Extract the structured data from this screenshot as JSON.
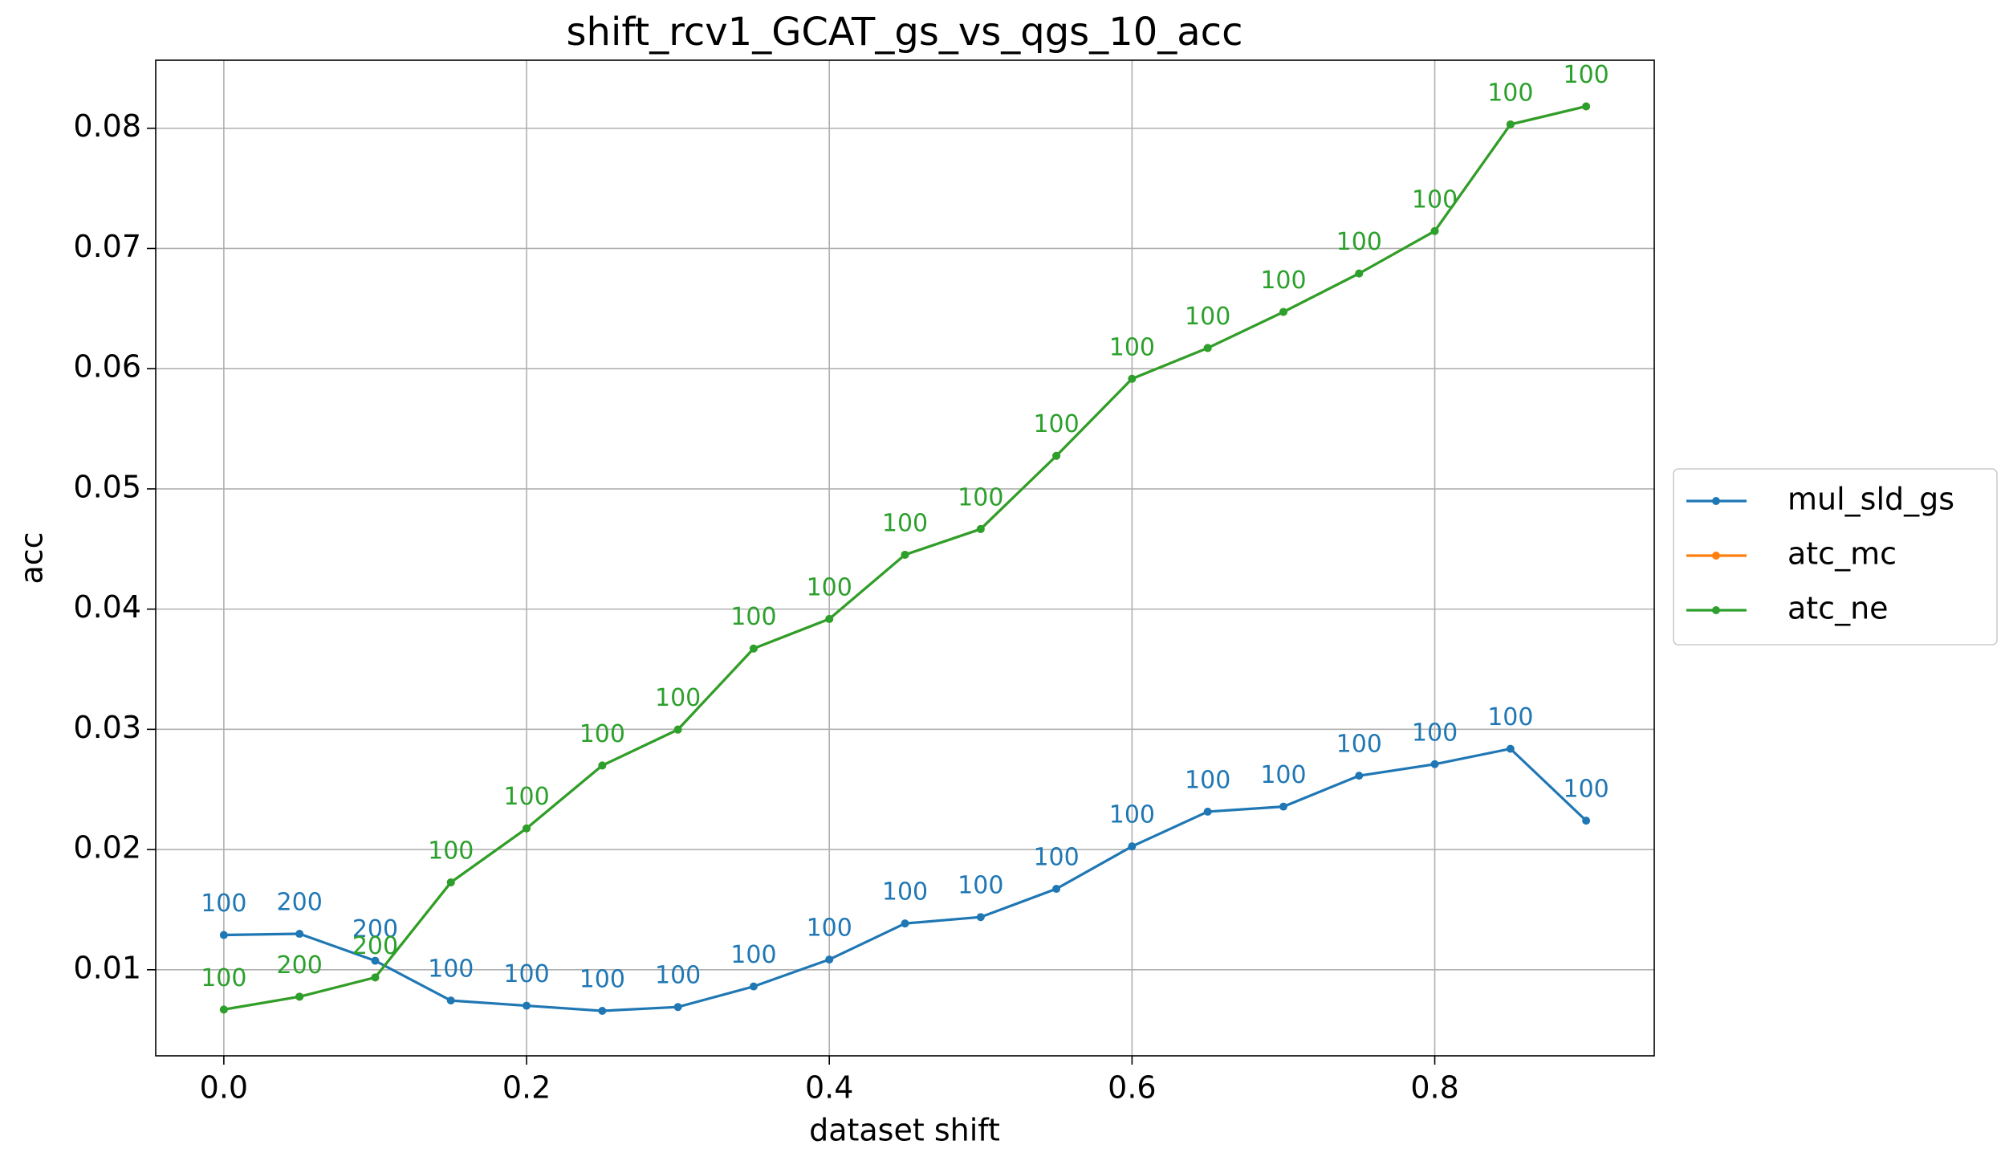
{
  "chart_data": {
    "type": "line",
    "title": "shift_rcv1_GCAT_gs_vs_qgs_10_acc",
    "x_label": "dataset shift",
    "y_label": "acc",
    "x": [
      0.0,
      0.05,
      0.1,
      0.15,
      0.2,
      0.25,
      0.3,
      0.35,
      0.4,
      0.45,
      0.5,
      0.55,
      0.6,
      0.65,
      0.7,
      0.75,
      0.8,
      0.85,
      0.9
    ],
    "series": [
      {
        "name": "mul_sld_gs",
        "color": "#1f77b4",
        "values": [
          0.01289,
          0.01299,
          0.01075,
          0.00744,
          0.00701,
          0.00658,
          0.0069,
          0.00861,
          0.01085,
          0.01385,
          0.01438,
          0.01673,
          0.02026,
          0.02315,
          0.02357,
          0.02614,
          0.0271,
          0.02838,
          0.0224
        ],
        "labels": [
          "100",
          "200",
          "200",
          "100",
          "100",
          "100",
          "100",
          "100",
          "100",
          "100",
          "100",
          "100",
          "100",
          "100",
          "100",
          "100",
          "100",
          "100",
          "100"
        ]
      },
      {
        "name": "atc_mc",
        "color": "#ff7f0e",
        "values": [
          0.00669,
          0.00776,
          0.00936,
          0.01727,
          0.02176,
          0.02699,
          0.02998,
          0.03672,
          0.03918,
          0.04452,
          0.04666,
          0.05275,
          0.05916,
          0.06172,
          0.06472,
          0.06792,
          0.07145,
          0.08032,
          0.08182
        ]
      },
      {
        "name": "atc_ne",
        "color": "#2ca02c",
        "values": [
          0.00669,
          0.00776,
          0.00936,
          0.01727,
          0.02176,
          0.02699,
          0.02998,
          0.03672,
          0.03918,
          0.04452,
          0.04666,
          0.05275,
          0.05916,
          0.06172,
          0.06472,
          0.06792,
          0.07145,
          0.08032,
          0.08182
        ],
        "labels": [
          "100",
          "200",
          "200",
          "100",
          "100",
          "100",
          "100",
          "100",
          "100",
          "100",
          "100",
          "100",
          "100",
          "100",
          "100",
          "100",
          "100",
          "100",
          "100"
        ]
      }
    ],
    "xlim": [
      -0.045,
      0.945
    ],
    "xticks": [
      {
        "value": 0,
        "label": "0.0"
      },
      0.2,
      0.4,
      0.6,
      0.8
    ],
    "ylim": [
      0.00284,
      0.08566
    ],
    "yticks": [
      0.01,
      0.02,
      0.03,
      0.04,
      0.05,
      0.06,
      0.07,
      0.08
    ],
    "grid": true,
    "legend": "right"
  }
}
